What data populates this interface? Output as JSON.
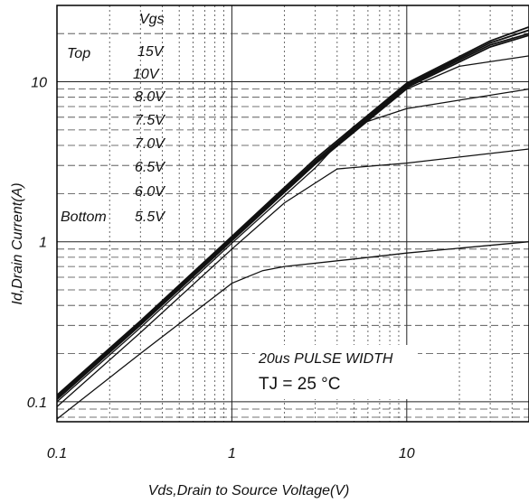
{
  "chart_data": {
    "type": "line",
    "x_scale": "log",
    "y_scale": "log",
    "xlim": [
      0.1,
      50
    ],
    "ylim": [
      0.075,
      30
    ],
    "xlabel": "Vds,Drain to Source Voltage(V)",
    "ylabel": "Id,Drain Current(A)",
    "x_ticks": [
      {
        "value": 0.1,
        "label": "0.1"
      },
      {
        "value": 1,
        "label": "1"
      },
      {
        "value": 10,
        "label": "10"
      }
    ],
    "y_ticks": [
      {
        "value": 0.1,
        "label": "0.1"
      },
      {
        "value": 1,
        "label": "1"
      },
      {
        "value": 10,
        "label": "10"
      }
    ],
    "grid": true,
    "legend": {
      "header": "Vgs",
      "top_label": "Top",
      "bottom_label": "Bottom",
      "entries": [
        "15V",
        "10V",
        "8.0V",
        "7.5V",
        "7.0V",
        "6.5V",
        "6.0V",
        "5.5V"
      ]
    },
    "annotations": {
      "pulse": "20us PULSE WIDTH",
      "tj_prefix": "TJ = ",
      "tj_value": "25 °C"
    },
    "series": [
      {
        "x": [
          0.1,
          0.3,
          1,
          3,
          10,
          30,
          50
        ],
        "y": [
          0.11,
          0.32,
          1.08,
          3.3,
          9.8,
          18,
          22
        ]
      },
      {
        "x": [
          0.1,
          0.3,
          1,
          3,
          10,
          30,
          50
        ],
        "y": [
          0.108,
          0.315,
          1.06,
          3.2,
          9.6,
          17.5,
          21
        ]
      },
      {
        "x": [
          0.1,
          0.3,
          1,
          3,
          10,
          30,
          50
        ],
        "y": [
          0.106,
          0.31,
          1.04,
          3.15,
          9.4,
          17,
          20
        ]
      },
      {
        "x": [
          0.1,
          0.3,
          1,
          3,
          10,
          30,
          50
        ],
        "y": [
          0.105,
          0.305,
          1.03,
          3.1,
          9.2,
          16.5,
          19.5
        ]
      },
      {
        "x": [
          0.1,
          0.3,
          1,
          3,
          10,
          20,
          50
        ],
        "y": [
          0.103,
          0.3,
          1.01,
          3.05,
          9.0,
          12.5,
          14.5
        ]
      },
      {
        "x": [
          0.1,
          0.3,
          1,
          3,
          5,
          10,
          50
        ],
        "y": [
          0.1,
          0.29,
          0.98,
          2.9,
          5.3,
          6.8,
          9.0
        ]
      },
      {
        "x": [
          0.1,
          0.3,
          1,
          2,
          4,
          10,
          50
        ],
        "y": [
          0.093,
          0.27,
          0.9,
          1.75,
          2.85,
          3.1,
          3.8
        ]
      },
      {
        "x": [
          0.1,
          0.3,
          1,
          1.5,
          2,
          5,
          10,
          50
        ],
        "y": [
          0.078,
          0.2,
          0.55,
          0.66,
          0.7,
          0.78,
          0.85,
          1.0
        ]
      }
    ]
  }
}
